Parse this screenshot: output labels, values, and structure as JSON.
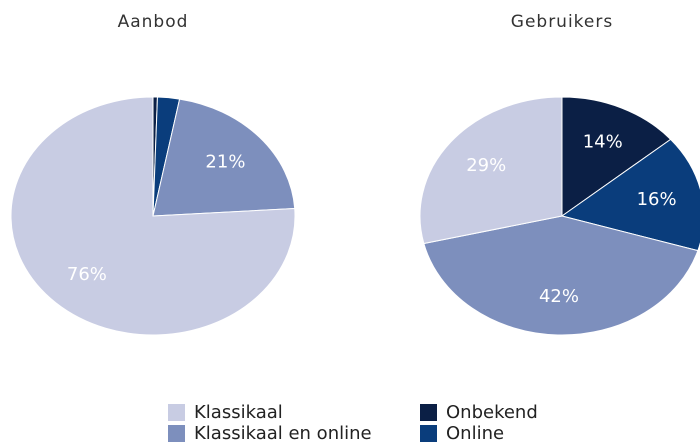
{
  "chart_data": [
    {
      "type": "pie",
      "title": "Aanbod",
      "categories": [
        "Onbekend",
        "Online",
        "Klassikaal en online",
        "Klassikaal"
      ],
      "values": [
        0.5,
        2.5,
        21,
        76
      ],
      "value_labels": [
        null,
        null,
        "21%",
        "76%"
      ],
      "colors": [
        "#0b1f45",
        "#0a3d7c",
        "#7d8fbd",
        "#c8cce3"
      ],
      "legend": true
    },
    {
      "type": "pie",
      "title": "Gebruikers",
      "categories": [
        "Onbekend",
        "Online",
        "Klassikaal en online",
        "Klassikaal"
      ],
      "values": [
        14,
        16,
        42,
        29
      ],
      "value_labels": [
        "14%",
        "16%",
        "42%",
        "29%"
      ],
      "colors": [
        "#0b1f45",
        "#0a3d7c",
        "#7d8fbd",
        "#c8cce3"
      ]
    }
  ]
}
